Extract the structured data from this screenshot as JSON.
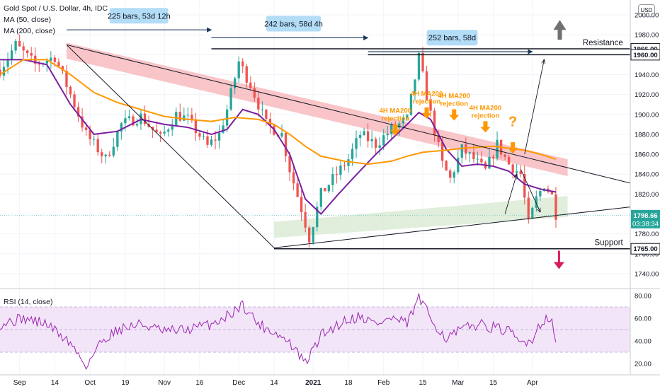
{
  "header": {
    "title": "Gold Spot / U.S. Dollar, 4h, IDC",
    "ma50_label": "MA (50, close)",
    "ma200_label": "MA (200, close)",
    "currency_button": "USD"
  },
  "rsi_panel": {
    "label": "RSI (14, close)"
  },
  "colors": {
    "candle_up": "#26a69a",
    "candle_down": "#ef5350",
    "ma50": "#7b1fa2",
    "ma200": "#ff9800",
    "resistance_zone": "#f8b7bb",
    "support_zone": "#d9ead3",
    "callout_bg": "#b3dcf7",
    "annotation_orange": "#ff9800",
    "rsi_line": "#9c27b0",
    "rsi_band": "#f2e5f8",
    "arrow_up": "#707070",
    "arrow_down": "#d81b60",
    "price_tag": "#131722"
  },
  "chart_data": [
    {
      "type": "candlestick",
      "symbol": "Gold Spot / U.S. Dollar",
      "timeframe": "4h",
      "ylim": [
        1725,
        2015
      ],
      "y_ticks": [
        1740,
        1760,
        1780,
        1800,
        1820,
        1840,
        1860,
        1880,
        1900,
        1920,
        1940,
        1960,
        1980,
        2000
      ],
      "x_ticks": [
        "Sep",
        "14",
        "Oct",
        "19",
        "Nov",
        "16",
        "Dec",
        "14",
        "2021",
        "18",
        "Feb",
        "15",
        "Mar",
        "15",
        "Apr"
      ],
      "price_path": [
        {
          "t": 0,
          "p": 1945
        },
        {
          "t": 4,
          "p": 1970
        },
        {
          "t": 9,
          "p": 1950
        },
        {
          "t": 14,
          "p": 1958
        },
        {
          "t": 18,
          "p": 1920
        },
        {
          "t": 22,
          "p": 1880
        },
        {
          "t": 27,
          "p": 1855
        },
        {
          "t": 31,
          "p": 1890
        },
        {
          "t": 36,
          "p": 1898
        },
        {
          "t": 41,
          "p": 1876
        },
        {
          "t": 45,
          "p": 1900
        },
        {
          "t": 48,
          "p": 1895
        },
        {
          "t": 53,
          "p": 1868
        },
        {
          "t": 56,
          "p": 1880
        },
        {
          "t": 58,
          "p": 1905
        },
        {
          "t": 61,
          "p": 1953
        },
        {
          "t": 64,
          "p": 1930
        },
        {
          "t": 68,
          "p": 1890
        },
        {
          "t": 72,
          "p": 1880
        },
        {
          "t": 74,
          "p": 1845
        },
        {
          "t": 77,
          "p": 1805
        },
        {
          "t": 79,
          "p": 1776
        },
        {
          "t": 82,
          "p": 1820
        },
        {
          "t": 86,
          "p": 1840
        },
        {
          "t": 89,
          "p": 1855
        },
        {
          "t": 92,
          "p": 1880
        },
        {
          "t": 96,
          "p": 1870
        },
        {
          "t": 100,
          "p": 1885
        },
        {
          "t": 104,
          "p": 1895
        },
        {
          "t": 107,
          "p": 1957
        },
        {
          "t": 110,
          "p": 1900
        },
        {
          "t": 113,
          "p": 1850
        },
        {
          "t": 115,
          "p": 1835
        },
        {
          "t": 118,
          "p": 1865
        },
        {
          "t": 121,
          "p": 1855
        },
        {
          "t": 124,
          "p": 1843
        },
        {
          "t": 127,
          "p": 1870
        },
        {
          "t": 130,
          "p": 1850
        },
        {
          "t": 133,
          "p": 1840
        },
        {
          "t": 135,
          "p": 1790
        },
        {
          "t": 137,
          "p": 1815
        },
        {
          "t": 139,
          "p": 1830
        },
        {
          "t": 141,
          "p": 1818
        },
        {
          "t": 142,
          "p": 1800
        }
      ],
      "current_price": 1798.66,
      "countdown": "03:38:34",
      "price_tags": [
        1966.0,
        1960.0,
        1765.0
      ],
      "resistance_label": "Resistance",
      "support_label": "Support",
      "bar_count_labels": [
        "225 bars, 53d 12h",
        "242 bars, 58d 4h",
        "252 bars, 58d"
      ],
      "rejection_labels": [
        "4H MA200 rejection",
        "4H MA200 rejection",
        "4H MA200 rejection",
        "4H MA200 rejection"
      ],
      "question_mark": "?",
      "series": [
        {
          "name": "MA (50, close)",
          "color": "#7b1fa2",
          "values": [
            [
              0,
              1955
            ],
            [
              6,
              1955
            ],
            [
              12,
              1950
            ],
            [
              18,
              1910
            ],
            [
              24,
              1880
            ],
            [
              30,
              1883
            ],
            [
              36,
              1895
            ],
            [
              42,
              1890
            ],
            [
              48,
              1887
            ],
            [
              54,
              1880
            ],
            [
              58,
              1885
            ],
            [
              62,
              1905
            ],
            [
              66,
              1900
            ],
            [
              70,
              1885
            ],
            [
              74,
              1860
            ],
            [
              78,
              1815
            ],
            [
              82,
              1800
            ],
            [
              86,
              1818
            ],
            [
              90,
              1835
            ],
            [
              96,
              1860
            ],
            [
              100,
              1875
            ],
            [
              104,
              1890
            ],
            [
              107,
              1902
            ],
            [
              110,
              1895
            ],
            [
              114,
              1865
            ],
            [
              118,
              1848
            ],
            [
              122,
              1850
            ],
            [
              126,
              1848
            ],
            [
              130,
              1843
            ],
            [
              134,
              1830
            ],
            [
              138,
              1825
            ],
            [
              142,
              1822
            ]
          ]
        },
        {
          "name": "MA (200, close)",
          "color": "#ff9800",
          "values": [
            [
              0,
              1940
            ],
            [
              6,
              1955
            ],
            [
              12,
              1955
            ],
            [
              18,
              1940
            ],
            [
              24,
              1922
            ],
            [
              30,
              1912
            ],
            [
              36,
              1905
            ],
            [
              42,
              1898
            ],
            [
              48,
              1895
            ],
            [
              54,
              1893
            ],
            [
              60,
              1897
            ],
            [
              66,
              1895
            ],
            [
              70,
              1890
            ],
            [
              74,
              1880
            ],
            [
              78,
              1868
            ],
            [
              82,
              1858
            ],
            [
              88,
              1853
            ],
            [
              94,
              1850
            ],
            [
              100,
              1853
            ],
            [
              104,
              1858
            ],
            [
              108,
              1862
            ],
            [
              114,
              1864
            ],
            [
              118,
              1866
            ],
            [
              122,
              1867
            ],
            [
              126,
              1868
            ],
            [
              130,
              1866
            ],
            [
              134,
              1864
            ],
            [
              138,
              1860
            ],
            [
              142,
              1855
            ]
          ]
        }
      ]
    },
    {
      "type": "line",
      "name": "RSI (14, close)",
      "ylim": [
        10,
        85
      ],
      "y_ticks": [
        20,
        40,
        60,
        80
      ],
      "band": [
        30,
        70
      ],
      "values": [
        [
          0,
          55
        ],
        [
          6,
          60
        ],
        [
          12,
          55
        ],
        [
          18,
          38
        ],
        [
          22,
          18
        ],
        [
          26,
          40
        ],
        [
          30,
          50
        ],
        [
          36,
          55
        ],
        [
          42,
          48
        ],
        [
          48,
          50
        ],
        [
          54,
          55
        ],
        [
          58,
          62
        ],
        [
          62,
          72
        ],
        [
          66,
          55
        ],
        [
          70,
          48
        ],
        [
          74,
          38
        ],
        [
          78,
          20
        ],
        [
          82,
          45
        ],
        [
          88,
          58
        ],
        [
          92,
          62
        ],
        [
          96,
          55
        ],
        [
          100,
          60
        ],
        [
          104,
          55
        ],
        [
          107,
          78
        ],
        [
          110,
          60
        ],
        [
          114,
          42
        ],
        [
          118,
          50
        ],
        [
          122,
          55
        ],
        [
          126,
          52
        ],
        [
          130,
          48
        ],
        [
          133,
          38
        ],
        [
          136,
          42
        ],
        [
          138,
          55
        ],
        [
          140,
          62
        ],
        [
          141,
          55
        ],
        [
          142,
          38
        ]
      ]
    }
  ]
}
